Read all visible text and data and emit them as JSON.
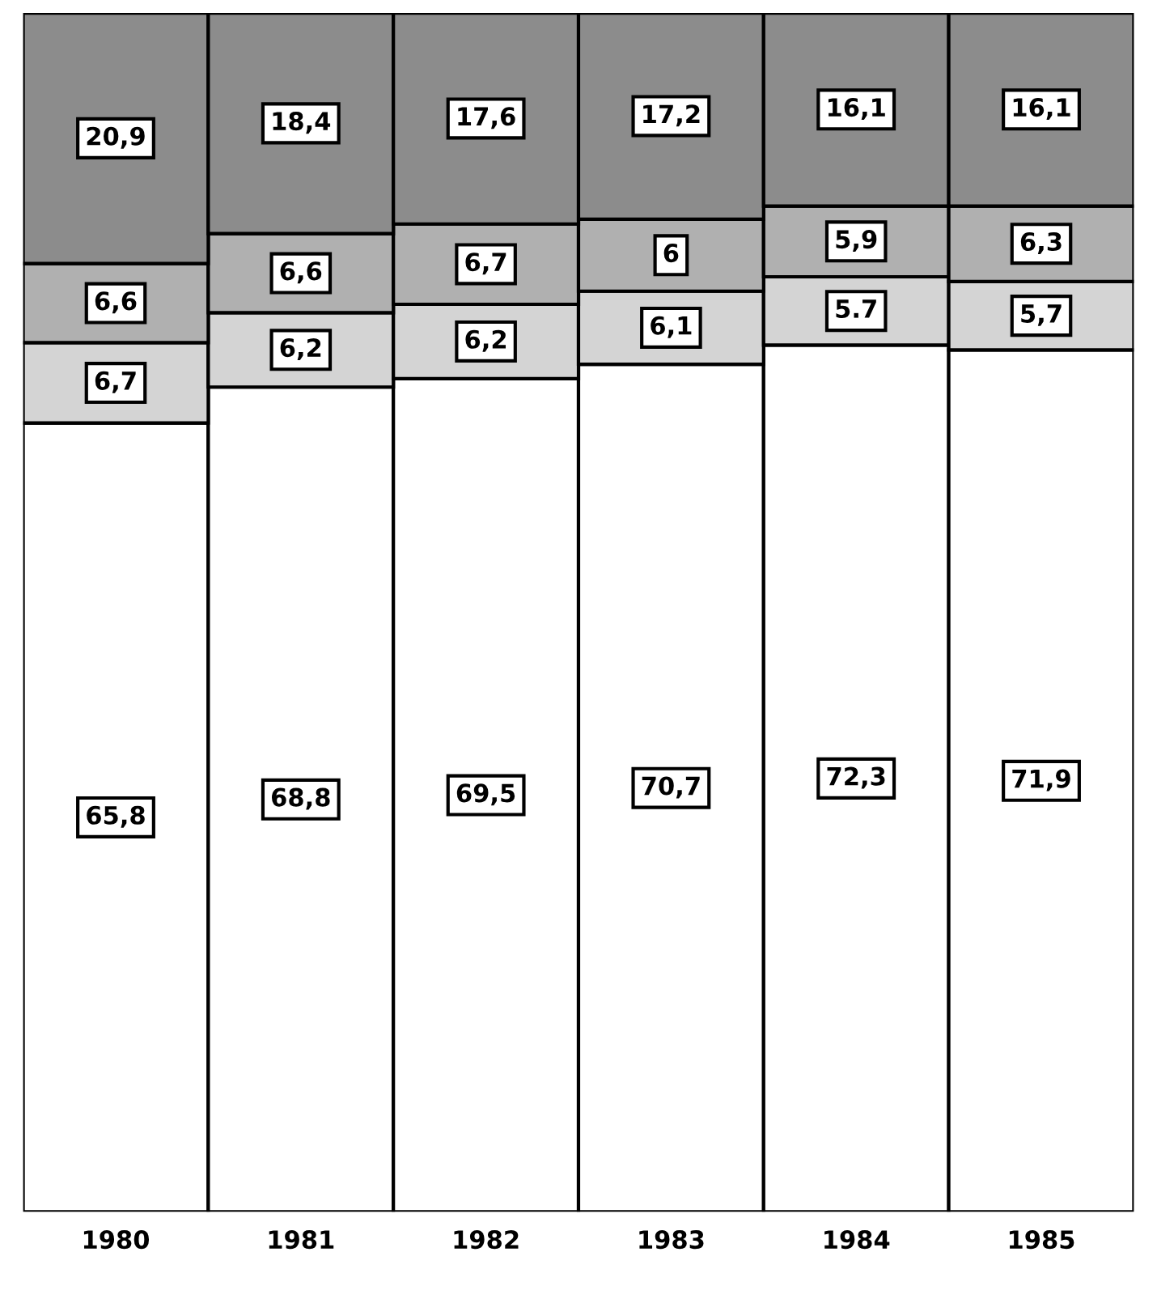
{
  "chart_data": {
    "type": "bar",
    "stacked": true,
    "categories": [
      "1980",
      "1981",
      "1982",
      "1983",
      "1984",
      "1985"
    ],
    "series": [
      {
        "color": "#ffffff",
        "values": [
          65.8,
          68.8,
          69.5,
          70.7,
          72.3,
          71.9
        ],
        "value_labels": [
          "65,8",
          "68,8",
          "69,5",
          "70,7",
          "72,3",
          "71,9"
        ]
      },
      {
        "color": "#d4d4d4",
        "values": [
          6.7,
          6.2,
          6.2,
          6.1,
          5.7,
          5.7
        ],
        "value_labels": [
          "6,7",
          "6,2",
          "6,2",
          "6,1",
          "5.7",
          "5,7"
        ]
      },
      {
        "color": "#b0b0b0",
        "values": [
          6.6,
          6.6,
          6.7,
          6,
          5.9,
          6.3
        ],
        "value_labels": [
          "6,6",
          "6,6",
          "6,7",
          "6",
          "5,9",
          "6,3"
        ]
      },
      {
        "color": "#8c8c8c",
        "values": [
          20.9,
          18.4,
          17.6,
          17.2,
          16.1,
          16.1
        ],
        "value_labels": [
          "20,9",
          "18,4",
          "17,6",
          "17,2",
          "16,1",
          "16,1"
        ]
      }
    ],
    "grid": false,
    "legend": false,
    "tick_labels": "x"
  }
}
